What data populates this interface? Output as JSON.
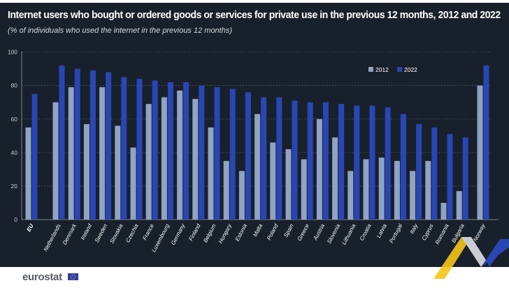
{
  "chart_data": {
    "type": "bar",
    "title": "Internet users who bought or ordered goods or services for private use in the previous 12 months, 2012 and 2022",
    "subtitle": "(% of individuals who used the internet in the previous 12 months)",
    "categories": [
      "EU",
      "Netherlands",
      "Denmark",
      "Ireland",
      "Sweden",
      "Slovakia",
      "Czechia",
      "France",
      "Luxembourg",
      "Germany",
      "Finland",
      "Belgium",
      "Hungary",
      "Estonia",
      "Malta",
      "Poland",
      "Spain",
      "Greece",
      "Austria",
      "Slovenia",
      "Lithuania",
      "Croatia",
      "Latvia",
      "Portugal",
      "Italy",
      "Cyprus",
      "Romania",
      "Bulgaria",
      "Norway"
    ],
    "series": [
      {
        "name": "2012",
        "color": "#8fa3c4",
        "values": [
          55,
          70,
          79,
          57,
          79,
          56,
          43,
          69,
          73,
          77,
          72,
          55,
          35,
          29,
          63,
          46,
          42,
          36,
          60,
          49,
          29,
          36,
          37,
          35,
          29,
          35,
          10,
          17,
          80
        ]
      },
      {
        "name": "2022",
        "color": "#2a45b4",
        "values": [
          75,
          92,
          90,
          89,
          88,
          85,
          84,
          83,
          82,
          82,
          80,
          79,
          78,
          76,
          73,
          73,
          71,
          70,
          70,
          69,
          68,
          68,
          67,
          63,
          57,
          55,
          51,
          49,
          92
        ]
      }
    ],
    "ylim": [
      0,
      100
    ],
    "yticks": [
      0,
      20,
      40,
      60,
      80,
      100
    ],
    "grid": true,
    "legend": "top-right",
    "xlabel": "",
    "ylabel": ""
  },
  "footer": {
    "logo": "eurostat"
  }
}
